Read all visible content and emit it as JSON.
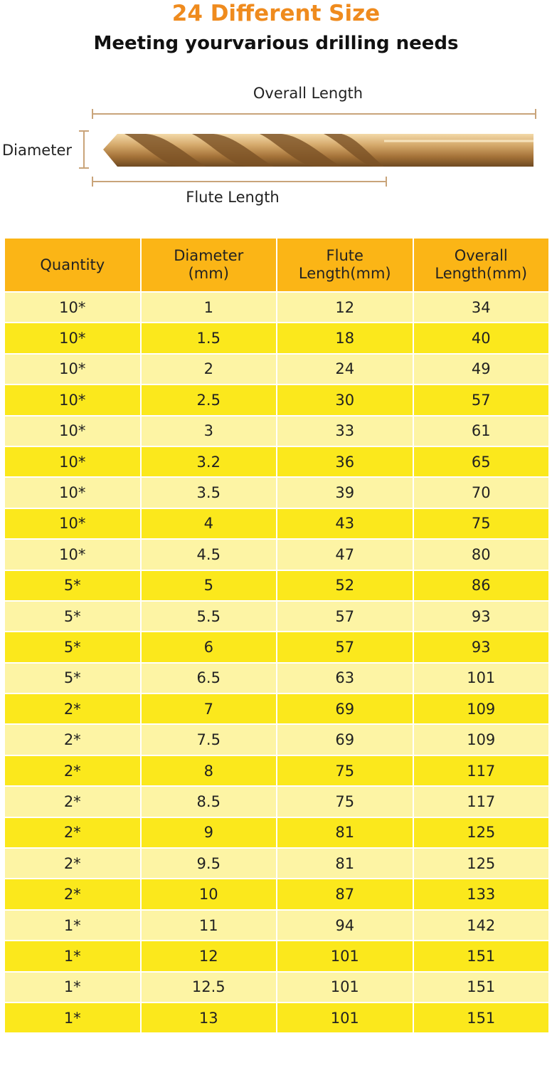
{
  "header": {
    "title": "24 Different Size",
    "subtitle": "Meeting yourvarious drilling needs"
  },
  "diagram": {
    "overall_length": "Overall Length",
    "diameter": "Diameter",
    "flute_length": "Flute Length"
  },
  "table": {
    "columns": [
      "Quantity",
      "Diameter\n(mm)",
      "Flute\nLength(mm)",
      "Overall\nLength(mm)"
    ],
    "rows": [
      [
        "10*",
        "1",
        "12",
        "34"
      ],
      [
        "10*",
        "1.5",
        "18",
        "40"
      ],
      [
        "10*",
        "2",
        "24",
        "49"
      ],
      [
        "10*",
        "2.5",
        "30",
        "57"
      ],
      [
        "10*",
        "3",
        "33",
        "61"
      ],
      [
        "10*",
        "3.2",
        "36",
        "65"
      ],
      [
        "10*",
        "3.5",
        "39",
        "70"
      ],
      [
        "10*",
        "4",
        "43",
        "75"
      ],
      [
        "10*",
        "4.5",
        "47",
        "80"
      ],
      [
        "5*",
        "5",
        "52",
        "86"
      ],
      [
        "5*",
        "5.5",
        "57",
        "93"
      ],
      [
        "5*",
        "6",
        "57",
        "93"
      ],
      [
        "5*",
        "6.5",
        "63",
        "101"
      ],
      [
        "2*",
        "7",
        "69",
        "109"
      ],
      [
        "2*",
        "7.5",
        "69",
        "109"
      ],
      [
        "2*",
        "8",
        "75",
        "117"
      ],
      [
        "2*",
        "8.5",
        "75",
        "117"
      ],
      [
        "2*",
        "9",
        "81",
        "125"
      ],
      [
        "2*",
        "9.5",
        "81",
        "125"
      ],
      [
        "2*",
        "10",
        "87",
        "133"
      ],
      [
        "1*",
        "11",
        "94",
        "142"
      ],
      [
        "1*",
        "12",
        "101",
        "151"
      ],
      [
        "1*",
        "12.5",
        "101",
        "151"
      ],
      [
        "1*",
        "13",
        "101",
        "151"
      ]
    ]
  }
}
